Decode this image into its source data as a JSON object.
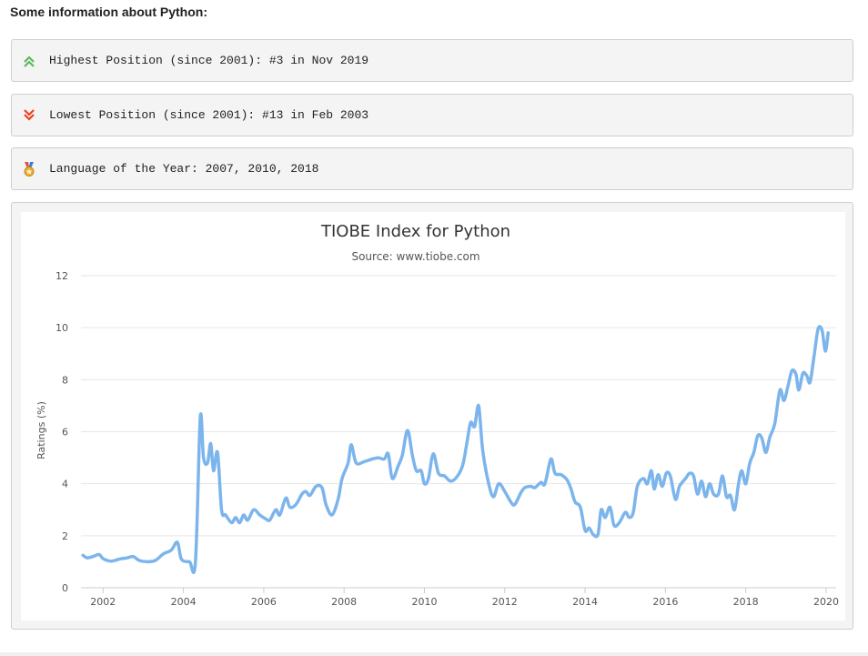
{
  "page": {
    "heading": "Some information about Python:",
    "info": [
      {
        "icon": "double-chevron-up-icon",
        "color": "#5cb85c",
        "text": "Highest Position (since 2001): #3 in Nov 2019"
      },
      {
        "icon": "double-chevron-down-icon",
        "color": "#e8441f",
        "text": "Lowest Position (since 2001): #13 in Feb 2003"
      },
      {
        "icon": "medal-icon",
        "color": "#f0a830",
        "text": "Language of the Year: 2007, 2010, 2018"
      }
    ]
  },
  "chart_data": {
    "type": "line",
    "title": "TIOBE Index for Python",
    "subtitle": "Source: www.tiobe.com",
    "xlabel": "",
    "ylabel": "Ratings (%)",
    "xlim": [
      2001.45,
      2020.25
    ],
    "ylim": [
      0,
      12
    ],
    "x_ticks": [
      2002,
      2004,
      2006,
      2008,
      2010,
      2012,
      2014,
      2016,
      2018,
      2020
    ],
    "y_ticks": [
      0,
      2,
      4,
      6,
      8,
      10,
      12
    ],
    "grid": true,
    "line_color": "#7cb5ec",
    "series": [
      {
        "values": [
          [
            2001.5,
            1.25
          ],
          [
            2001.6,
            1.15
          ],
          [
            2001.75,
            1.2
          ],
          [
            2001.9,
            1.28
          ],
          [
            2002.0,
            1.12
          ],
          [
            2002.2,
            1.02
          ],
          [
            2002.4,
            1.1
          ],
          [
            2002.6,
            1.15
          ],
          [
            2002.75,
            1.2
          ],
          [
            2002.9,
            1.05
          ],
          [
            2003.1,
            1.0
          ],
          [
            2003.3,
            1.05
          ],
          [
            2003.5,
            1.3
          ],
          [
            2003.7,
            1.45
          ],
          [
            2003.85,
            1.75
          ],
          [
            2003.95,
            1.1
          ],
          [
            2004.15,
            1.0
          ],
          [
            2004.3,
            1.0
          ],
          [
            2004.42,
            6.55
          ],
          [
            2004.5,
            5.0
          ],
          [
            2004.6,
            4.8
          ],
          [
            2004.68,
            5.55
          ],
          [
            2004.75,
            4.5
          ],
          [
            2004.85,
            5.2
          ],
          [
            2004.95,
            3.0
          ],
          [
            2005.05,
            2.8
          ],
          [
            2005.2,
            2.5
          ],
          [
            2005.3,
            2.7
          ],
          [
            2005.4,
            2.5
          ],
          [
            2005.5,
            2.8
          ],
          [
            2005.6,
            2.6
          ],
          [
            2005.75,
            3.0
          ],
          [
            2005.9,
            2.8
          ],
          [
            2006.05,
            2.65
          ],
          [
            2006.15,
            2.6
          ],
          [
            2006.3,
            3.0
          ],
          [
            2006.4,
            2.8
          ],
          [
            2006.55,
            3.45
          ],
          [
            2006.65,
            3.1
          ],
          [
            2006.8,
            3.2
          ],
          [
            2006.95,
            3.6
          ],
          [
            2007.05,
            3.7
          ],
          [
            2007.15,
            3.55
          ],
          [
            2007.3,
            3.9
          ],
          [
            2007.45,
            3.85
          ],
          [
            2007.55,
            3.2
          ],
          [
            2007.7,
            2.8
          ],
          [
            2007.85,
            3.4
          ],
          [
            2007.95,
            4.2
          ],
          [
            2008.1,
            4.8
          ],
          [
            2008.18,
            5.5
          ],
          [
            2008.3,
            4.8
          ],
          [
            2008.5,
            4.85
          ],
          [
            2008.7,
            4.95
          ],
          [
            2008.85,
            5.0
          ],
          [
            2009.0,
            4.95
          ],
          [
            2009.1,
            5.15
          ],
          [
            2009.2,
            4.2
          ],
          [
            2009.35,
            4.7
          ],
          [
            2009.45,
            5.1
          ],
          [
            2009.58,
            6.05
          ],
          [
            2009.7,
            5.1
          ],
          [
            2009.8,
            4.5
          ],
          [
            2009.92,
            4.5
          ],
          [
            2010.0,
            4.0
          ],
          [
            2010.1,
            4.2
          ],
          [
            2010.22,
            5.15
          ],
          [
            2010.35,
            4.4
          ],
          [
            2010.5,
            4.3
          ],
          [
            2010.65,
            4.1
          ],
          [
            2010.8,
            4.25
          ],
          [
            2010.95,
            4.7
          ],
          [
            2011.05,
            5.5
          ],
          [
            2011.15,
            6.35
          ],
          [
            2011.25,
            6.2
          ],
          [
            2011.35,
            7.0
          ],
          [
            2011.45,
            5.3
          ],
          [
            2011.6,
            4.0
          ],
          [
            2011.72,
            3.5
          ],
          [
            2011.85,
            4.0
          ],
          [
            2012.0,
            3.7
          ],
          [
            2012.15,
            3.3
          ],
          [
            2012.25,
            3.2
          ],
          [
            2012.4,
            3.65
          ],
          [
            2012.5,
            3.85
          ],
          [
            2012.65,
            3.9
          ],
          [
            2012.75,
            3.85
          ],
          [
            2012.9,
            4.05
          ],
          [
            2013.0,
            4.0
          ],
          [
            2013.15,
            4.95
          ],
          [
            2013.25,
            4.4
          ],
          [
            2013.4,
            4.35
          ],
          [
            2013.55,
            4.15
          ],
          [
            2013.65,
            3.8
          ],
          [
            2013.75,
            3.3
          ],
          [
            2013.88,
            3.1
          ],
          [
            2014.0,
            2.2
          ],
          [
            2014.1,
            2.3
          ],
          [
            2014.2,
            2.05
          ],
          [
            2014.32,
            2.05
          ],
          [
            2014.4,
            3.0
          ],
          [
            2014.5,
            2.7
          ],
          [
            2014.62,
            3.1
          ],
          [
            2014.72,
            2.4
          ],
          [
            2014.85,
            2.5
          ],
          [
            2015.0,
            2.9
          ],
          [
            2015.1,
            2.7
          ],
          [
            2015.2,
            2.9
          ],
          [
            2015.3,
            3.9
          ],
          [
            2015.45,
            4.2
          ],
          [
            2015.55,
            4.0
          ],
          [
            2015.65,
            4.5
          ],
          [
            2015.72,
            3.8
          ],
          [
            2015.82,
            4.35
          ],
          [
            2015.92,
            3.9
          ],
          [
            2016.02,
            4.4
          ],
          [
            2016.12,
            4.3
          ],
          [
            2016.25,
            3.4
          ],
          [
            2016.35,
            3.9
          ],
          [
            2016.5,
            4.2
          ],
          [
            2016.6,
            4.4
          ],
          [
            2016.7,
            4.3
          ],
          [
            2016.8,
            3.6
          ],
          [
            2016.9,
            4.1
          ],
          [
            2017.0,
            3.5
          ],
          [
            2017.1,
            4.0
          ],
          [
            2017.2,
            3.6
          ],
          [
            2017.32,
            3.6
          ],
          [
            2017.42,
            4.3
          ],
          [
            2017.52,
            3.5
          ],
          [
            2017.62,
            3.55
          ],
          [
            2017.72,
            3.0
          ],
          [
            2017.82,
            4.0
          ],
          [
            2017.9,
            4.5
          ],
          [
            2018.0,
            4.0
          ],
          [
            2018.1,
            4.8
          ],
          [
            2018.2,
            5.2
          ],
          [
            2018.3,
            5.85
          ],
          [
            2018.4,
            5.75
          ],
          [
            2018.5,
            5.2
          ],
          [
            2018.6,
            5.8
          ],
          [
            2018.72,
            6.3
          ],
          [
            2018.85,
            7.6
          ],
          [
            2018.95,
            7.2
          ],
          [
            2019.05,
            7.75
          ],
          [
            2019.15,
            8.35
          ],
          [
            2019.25,
            8.2
          ],
          [
            2019.32,
            7.6
          ],
          [
            2019.42,
            8.25
          ],
          [
            2019.52,
            8.15
          ],
          [
            2019.6,
            7.9
          ],
          [
            2019.7,
            8.9
          ],
          [
            2019.8,
            9.95
          ],
          [
            2019.9,
            9.9
          ],
          [
            2019.98,
            9.1
          ],
          [
            2020.05,
            9.8
          ]
        ]
      }
    ]
  }
}
